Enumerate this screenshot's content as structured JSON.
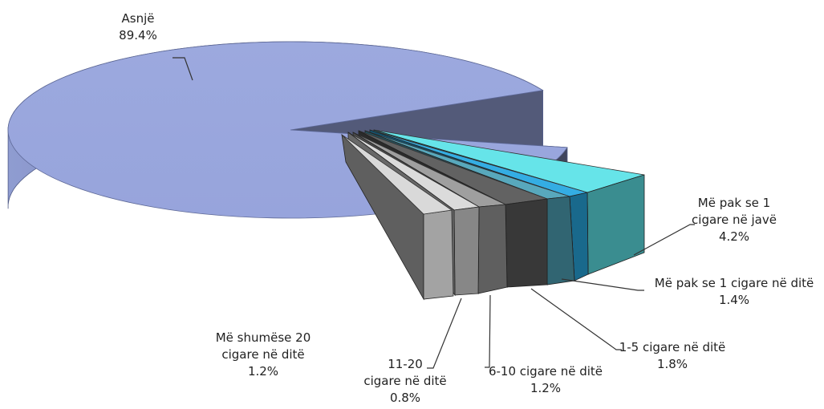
{
  "chart_data": {
    "type": "pie",
    "style": "3d-exploded",
    "slices": [
      {
        "label_lines": [
          "Asnjë"
        ],
        "value": 89.4,
        "value_text": "89.4%",
        "color": "#97a4dc"
      },
      {
        "label_lines": [
          "Më  pak se 1",
          "cigare në javë"
        ],
        "value": 4.2,
        "value_text": "4.2%",
        "color": "#5ee3e8"
      },
      {
        "label_lines": [
          "Më pak se 1 cigare në ditë"
        ],
        "value": 1.4,
        "value_text": "1.4%",
        "color": "#29a9e2"
      },
      {
        "label_lines": [
          "1-5 cigare në ditë"
        ],
        "value": 1.8,
        "value_text": "1.8%",
        "color": "#4fa3b8"
      },
      {
        "label_lines": [
          "6-10 cigare në ditë"
        ],
        "value": 1.2,
        "value_text": "1.2%",
        "color": "#5a5a5a"
      },
      {
        "label_lines": [
          "11-20",
          "cigare në ditë"
        ],
        "value": 0.8,
        "value_text": "0.8%",
        "color": "#9a9a9a"
      },
      {
        "label_lines": [
          "Më shumëse 20",
          "cigare në ditë"
        ],
        "value": 1.2,
        "value_text": "1.2%",
        "color": "#d9d9d9"
      }
    ]
  }
}
